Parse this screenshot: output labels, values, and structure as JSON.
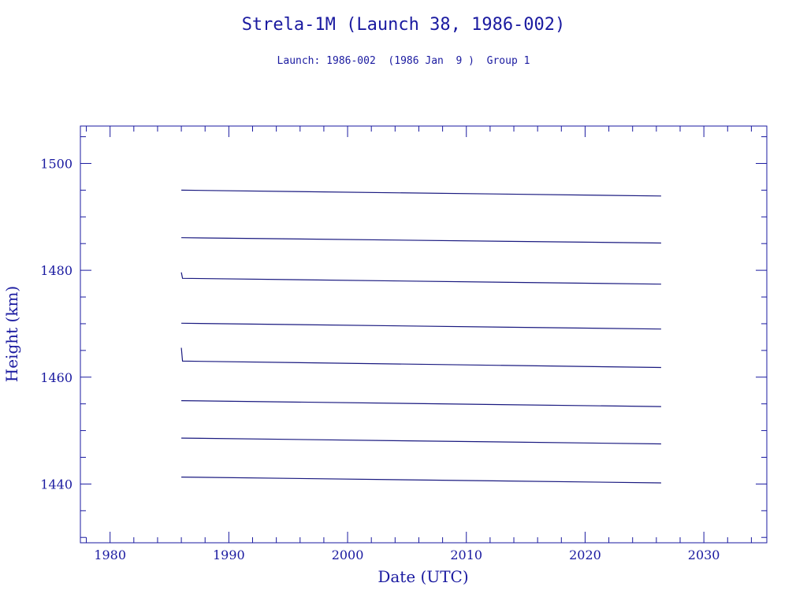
{
  "chart_data": {
    "type": "line",
    "title": "Strela-1M (Launch 38, 1986-002)",
    "subtitle": "Launch: 1986-002  (1986 Jan  9 )  Group 1",
    "xlabel": "Date (UTC)",
    "ylabel": "Height (km)",
    "xlim": [
      1977.5,
      2035.3
    ],
    "ylim": [
      1429,
      1507
    ],
    "x_major_ticks": [
      1980,
      1990,
      2000,
      2010,
      2020,
      2030
    ],
    "y_major_ticks": [
      1440,
      1460,
      1480,
      1500
    ],
    "x_minor_step": 2,
    "y_minor_step": 5,
    "grid": false,
    "colors": {
      "axes": "#1a1aa0",
      "series": "#1a1a80"
    },
    "series": [
      {
        "x": [
          1986.0,
          2026.4
        ],
        "y": [
          1495.0,
          1493.9
        ]
      },
      {
        "x": [
          1986.0,
          2026.4
        ],
        "y": [
          1486.1,
          1485.1
        ]
      },
      {
        "x": [
          1986.0,
          1986.1,
          2026.4
        ],
        "y": [
          1479.6,
          1478.5,
          1477.4
        ]
      },
      {
        "x": [
          1986.0,
          2026.4
        ],
        "y": [
          1470.1,
          1469.0
        ]
      },
      {
        "x": [
          1986.0,
          1986.1,
          2026.4
        ],
        "y": [
          1465.5,
          1463.0,
          1461.8
        ]
      },
      {
        "x": [
          1986.0,
          2026.4
        ],
        "y": [
          1455.6,
          1454.5
        ]
      },
      {
        "x": [
          1986.0,
          2026.4
        ],
        "y": [
          1448.6,
          1447.5
        ]
      },
      {
        "x": [
          1986.0,
          2026.4
        ],
        "y": [
          1441.3,
          1440.2
        ]
      }
    ]
  }
}
